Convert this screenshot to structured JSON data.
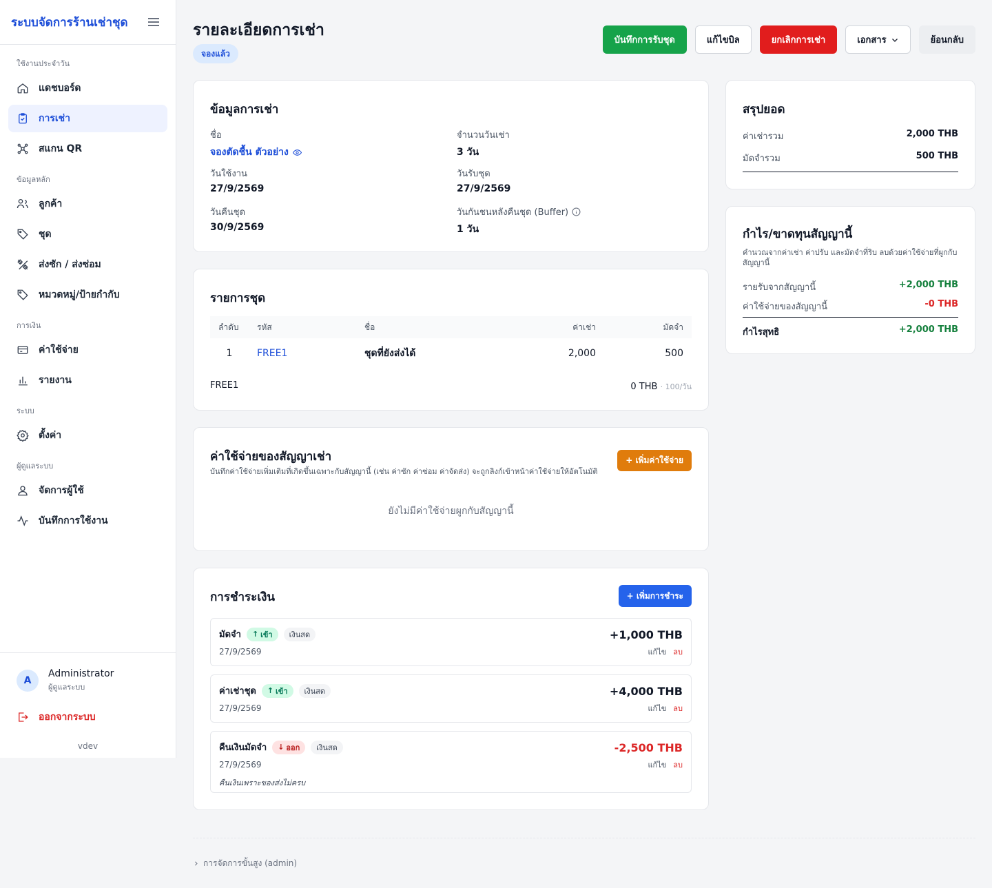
{
  "sidebar": {
    "brand": "ระบบจัดการร้านเช่าชุด",
    "sections": [
      {
        "title": "ใช้งานประจำวัน",
        "items": [
          {
            "label": "แดชบอร์ด",
            "icon": "home-icon"
          },
          {
            "label": "การเช่า",
            "icon": "clipboard-icon",
            "active": true
          },
          {
            "label": "สแกน QR",
            "icon": "qr-icon"
          }
        ]
      },
      {
        "title": "ข้อมูลหลัก",
        "items": [
          {
            "label": "ลูกค้า",
            "icon": "users-icon"
          },
          {
            "label": "ชุด",
            "icon": "tag-icon"
          },
          {
            "label": "ส่งซัก / ส่งซ่อม",
            "icon": "tools-icon"
          },
          {
            "label": "หมวดหมู่/ป้ายกำกับ",
            "icon": "tag-icon"
          }
        ]
      },
      {
        "title": "การเงิน",
        "items": [
          {
            "label": "ค่าใช้จ่าย",
            "icon": "credit-card-icon"
          },
          {
            "label": "รายงาน",
            "icon": "bar-chart-icon"
          }
        ]
      },
      {
        "title": "ระบบ",
        "items": [
          {
            "label": "ตั้งค่า",
            "icon": "gear-icon"
          }
        ]
      },
      {
        "title": "ผู้ดูแลระบบ",
        "items": [
          {
            "label": "จัดการผู้ใช้",
            "icon": "user-icon"
          },
          {
            "label": "บันทึกการใช้งาน",
            "icon": "activity-icon"
          }
        ]
      }
    ],
    "user": {
      "initial": "A",
      "name": "Administrator",
      "role": "ผู้ดูแลระบบ"
    },
    "logout": "ออกจากระบบ",
    "version": "vdev"
  },
  "header": {
    "title": "รายละเอียดการเช่า",
    "status": "จองแล้ว",
    "actions": {
      "record_pickup": "บันทึกการรับชุด",
      "edit_bill": "แก้ไขบิล",
      "cancel": "ยกเลิกการเช่า",
      "documents": "เอกสาร",
      "back": "ย้อนกลับ"
    }
  },
  "rental_info": {
    "title": "ข้อมูลการเช่า",
    "name_label": "ชื่อ",
    "name_value": "จองตัดชื้น ตัวอย่าง",
    "days_label": "จำนวนวันเช่า",
    "days_value": "3 วัน",
    "use_date_label": "วันใช้งาน",
    "use_date_value": "27/9/2569",
    "pickup_label": "วันรับชุด",
    "pickup_value": "27/9/2569",
    "return_label": "วันคืนชุด",
    "return_value": "30/9/2569",
    "buffer_label": "วันกันชนหลังคืนชุด (Buffer)",
    "buffer_value": "1 วัน"
  },
  "items": {
    "title": "รายการชุด",
    "columns": {
      "no": "ลำดับ",
      "code": "รหัส",
      "name": "ชื่อ",
      "rent": "ค่าเช่า",
      "deposit": "มัดจำ"
    },
    "rows": [
      {
        "no": "1",
        "code": "FREE1",
        "name": "ชุดที่ยังส่งได้",
        "rent": "2,000",
        "deposit": "500"
      }
    ],
    "footer_code": "FREE1",
    "footer_amount": "0 THB",
    "footer_rate": "· 100/วัน"
  },
  "expenses": {
    "title": "ค่าใช้จ่ายของสัญญาเช่า",
    "description": "บันทึกค่าใช้จ่ายเพิ่มเติมที่เกิดขึ้นเฉพาะกับสัญญานี้ (เช่น ค่าซัก ค่าซ่อม ค่าจัดส่ง) จะถูกลิงก์เข้าหน้าค่าใช้จ่ายให้อัตโนมัติ",
    "add_label": "+ เพิ่มค่าใช้จ่าย",
    "empty": "ยังไม่มีค่าใช้จ่ายผูกกับสัญญานี้"
  },
  "payments": {
    "title": "การชำระเงิน",
    "add_label": "+ เพิ่มการชำระ",
    "edit_label": "แก้ไข",
    "delete_label": "ลบ",
    "list": [
      {
        "type": "มัดจำ",
        "direction": "เข้า",
        "method": "เงินสด",
        "date": "27/9/2569",
        "amount": "+1,000 THB"
      },
      {
        "type": "ค่าเช่าชุด",
        "direction": "เข้า",
        "method": "เงินสด",
        "date": "27/9/2569",
        "amount": "+4,000 THB"
      },
      {
        "type": "คืนเงินมัดจำ",
        "direction": "ออก",
        "method": "เงินสด",
        "date": "27/9/2569",
        "amount": "-2,500 THB",
        "note": "คืนเงินเพราะของส่งไม่ครบ"
      }
    ]
  },
  "summary": {
    "title": "สรุปยอด",
    "rent_label": "ค่าเช่ารวม",
    "rent_value": "2,000 THB",
    "deposit_label": "มัดจำรวม",
    "deposit_value": "500 THB"
  },
  "profit": {
    "title": "กำไร/ขาดทุนสัญญานี้",
    "description": "คำนวณจากค่าเช่า ค่าปรับ และมัดจำที่ริบ ลบด้วยค่าใช้จ่ายที่ผูกกับสัญญานี้",
    "income_label": "รายรับจากสัญญานี้",
    "income_value": "+2,000 THB",
    "expense_label": "ค่าใช้จ่ายของสัญญานี้",
    "expense_value": "-0 THB",
    "net_label": "กำไรสุทธิ",
    "net_value": "+2,000 THB"
  },
  "footer": {
    "advanced": "การจัดการขั้นสูง (admin)"
  },
  "colors": {
    "primary": "#1d4ed8",
    "success": "#16a34a",
    "danger": "#e11d1d",
    "warning": "#e07c0c"
  }
}
